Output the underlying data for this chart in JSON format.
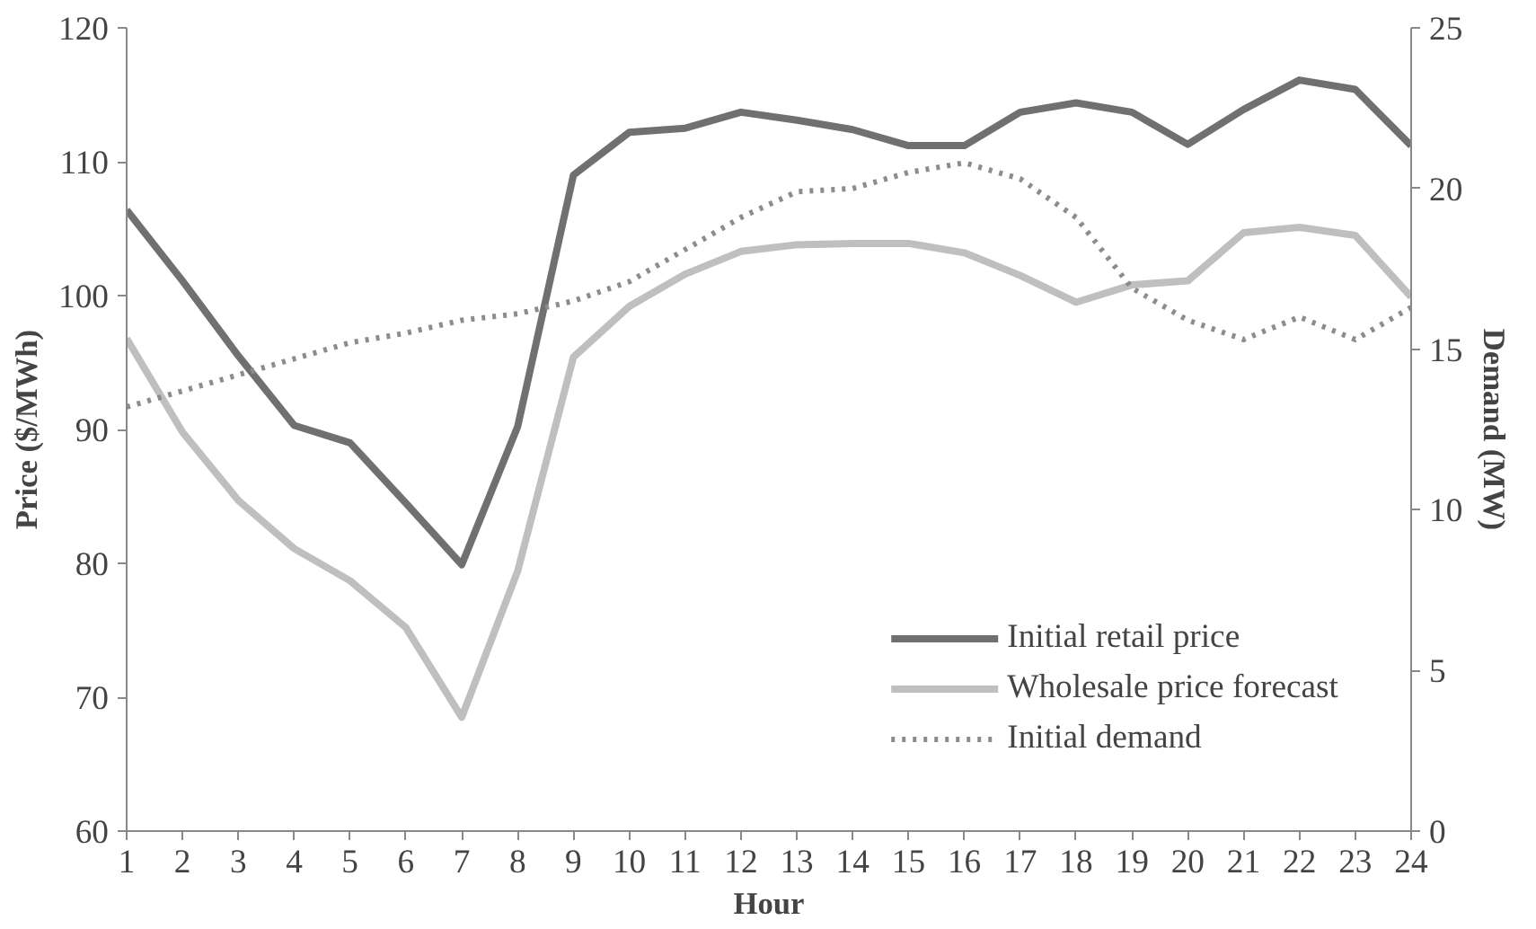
{
  "chart_data": {
    "type": "line",
    "xlabel": "Hour",
    "ylabel": "Price ($/MWh)",
    "y2label": "Demand (MW)",
    "x": [
      1,
      2,
      3,
      4,
      5,
      6,
      7,
      8,
      9,
      10,
      11,
      12,
      13,
      14,
      15,
      16,
      17,
      18,
      19,
      20,
      21,
      22,
      23,
      24
    ],
    "xlim": [
      1,
      24
    ],
    "xticks": [
      1,
      2,
      3,
      4,
      5,
      6,
      7,
      8,
      9,
      10,
      11,
      12,
      13,
      14,
      15,
      16,
      17,
      18,
      19,
      20,
      21,
      22,
      23,
      24
    ],
    "ylim": [
      60,
      120
    ],
    "yticks": [
      60,
      70,
      80,
      90,
      100,
      110,
      120
    ],
    "y2lim": [
      0,
      25
    ],
    "y2ticks": [
      0,
      5,
      10,
      15,
      20,
      25
    ],
    "grid": false,
    "legend": "bottom right",
    "series": [
      {
        "name": "Initial retail price",
        "color": "#707070",
        "line_style": "solid",
        "values": [
          106.4,
          101.1,
          95.5,
          90.3,
          89.0,
          84.5,
          79.9,
          90.2,
          109.0,
          112.2,
          112.5,
          113.7,
          113.1,
          112.4,
          111.2,
          111.2,
          113.7,
          114.4,
          113.7,
          111.3,
          113.9,
          116.1,
          115.4,
          111.2
        ]
      },
      {
        "name": "Wholesale price forecast",
        "color": "#bfbfbf",
        "line_style": "solid",
        "values": [
          96.8,
          89.8,
          84.7,
          81.1,
          78.7,
          75.2,
          68.5,
          79.4,
          95.4,
          99.2,
          101.6,
          103.3,
          103.8,
          103.9,
          103.9,
          103.2,
          101.5,
          99.5,
          100.8,
          101.1,
          104.7,
          105.1,
          104.5,
          99.9
        ]
      },
      {
        "name": "Initial demand",
        "color": "#8c8c8c",
        "line_style": "dotted",
        "axis": "y2",
        "values": [
          13.2,
          13.7,
          14.2,
          14.7,
          15.2,
          15.5,
          15.9,
          16.1,
          16.5,
          17.1,
          18.1,
          19.1,
          19.9,
          20.0,
          20.5,
          20.8,
          20.3,
          19.1,
          16.9,
          15.9,
          15.3,
          16.0,
          15.3,
          16.3
        ]
      }
    ]
  }
}
